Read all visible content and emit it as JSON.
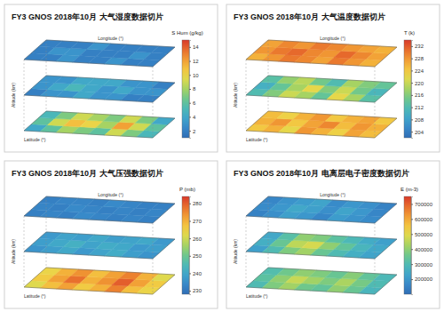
{
  "chart_data": [
    {
      "type": "heatmap",
      "title": "FY3 GNOS 2018年10月 大气湿度数据切片",
      "colorbar_label": "S Hum (g/kg)",
      "colorbar_range": [
        1,
        15
      ],
      "colorbar_ticks": [
        2,
        4,
        6,
        8,
        10,
        12,
        14
      ],
      "xlabel": "Longitude (°)",
      "ylabel": "Latitude (°)",
      "zlabel": "Altitude (km)",
      "cells": [
        [
          [
            2,
            2,
            3,
            2,
            2,
            3,
            2,
            2
          ],
          [
            2,
            3,
            3,
            2,
            2,
            2,
            3,
            2
          ],
          [
            2,
            2,
            2,
            3,
            2,
            2,
            2,
            2
          ]
        ],
        [
          [
            2,
            3,
            3,
            4,
            3,
            3,
            2,
            2
          ],
          [
            3,
            4,
            5,
            4,
            3,
            4,
            3,
            3
          ],
          [
            3,
            3,
            4,
            4,
            4,
            3,
            3,
            2
          ]
        ],
        [
          [
            4,
            6,
            8,
            7,
            6,
            9,
            7,
            5
          ],
          [
            6,
            9,
            11,
            10,
            8,
            12,
            9,
            6
          ],
          [
            5,
            7,
            9,
            8,
            7,
            9,
            7,
            4
          ]
        ]
      ]
    },
    {
      "type": "heatmap",
      "title": "FY3 GNOS 2018年10月 大气温度数据切片",
      "colorbar_label": "T (k)",
      "colorbar_range": [
        202,
        234
      ],
      "colorbar_ticks": [
        204,
        208,
        212,
        216,
        220,
        224,
        228,
        232
      ],
      "xlabel": "Longitude (°)",
      "ylabel": "Latitude (°)",
      "zlabel": "Altitude (km)",
      "cells": [
        [
          [
            226,
            228,
            230,
            229,
            227,
            230,
            228,
            226
          ],
          [
            228,
            230,
            231,
            229,
            228,
            231,
            229,
            227
          ],
          [
            227,
            229,
            228,
            230,
            229,
            228,
            227,
            226
          ]
        ],
        [
          [
            212,
            216,
            220,
            218,
            214,
            222,
            218,
            213
          ],
          [
            210,
            214,
            218,
            222,
            216,
            220,
            215,
            211
          ],
          [
            213,
            217,
            219,
            215,
            212,
            218,
            216,
            214
          ]
        ],
        [
          [
            224,
            226,
            222,
            228,
            226,
            223,
            227,
            225
          ],
          [
            226,
            228,
            224,
            227,
            229,
            225,
            228,
            226
          ],
          [
            225,
            223,
            226,
            228,
            224,
            226,
            227,
            224
          ]
        ]
      ]
    },
    {
      "type": "heatmap",
      "title": "FY3 GNOS 2018年10月 大气压强数据切片",
      "colorbar_label": "P (mb)",
      "colorbar_range": [
        228,
        284
      ],
      "colorbar_ticks": [
        230,
        240,
        250,
        260,
        270,
        280
      ],
      "xlabel": "Longitude (°)",
      "ylabel": "Latitude (°)",
      "zlabel": "Altitude (km)",
      "cells": [
        [
          [
            232,
            233,
            232,
            234,
            233,
            232,
            233,
            232
          ],
          [
            233,
            232,
            234,
            233,
            232,
            233,
            232,
            233
          ],
          [
            232,
            233,
            233,
            232,
            234,
            233,
            232,
            232
          ]
        ],
        [
          [
            236,
            238,
            240,
            237,
            239,
            241,
            238,
            236
          ],
          [
            238,
            240,
            242,
            239,
            241,
            240,
            237,
            238
          ],
          [
            237,
            239,
            238,
            240,
            238,
            239,
            240,
            237
          ]
        ],
        [
          [
            262,
            268,
            272,
            266,
            270,
            276,
            268,
            264
          ],
          [
            266,
            272,
            278,
            270,
            274,
            280,
            272,
            266
          ],
          [
            264,
            270,
            274,
            268,
            272,
            276,
            270,
            262
          ]
        ]
      ]
    },
    {
      "type": "heatmap",
      "title": "FY3 GNOS 2018年10月 电离层电子密度数据切片",
      "colorbar_label": "E (m-3)",
      "colorbar_range": [
        100000,
        750000
      ],
      "colorbar_ticks": [
        200000,
        300000,
        400000,
        500000,
        600000,
        700000
      ],
      "xlabel": "Longitude (°)",
      "ylabel": "Latitude (°)",
      "zlabel": "Altitude (km)",
      "cells": [
        [
          [
            150000,
            180000,
            220000,
            200000,
            160000,
            210000,
            190000,
            170000
          ],
          [
            170000,
            200000,
            240000,
            220000,
            180000,
            230000,
            200000,
            160000
          ],
          [
            160000,
            190000,
            210000,
            230000,
            170000,
            200000,
            180000,
            150000
          ]
        ],
        [
          [
            220000,
            300000,
            380000,
            420000,
            350000,
            300000,
            260000,
            230000
          ],
          [
            260000,
            350000,
            450000,
            480000,
            400000,
            340000,
            280000,
            240000
          ],
          [
            240000,
            320000,
            400000,
            380000,
            330000,
            290000,
            250000,
            220000
          ]
        ],
        [
          [
            300000,
            380000,
            420000,
            360000,
            340000,
            400000,
            350000,
            280000
          ],
          [
            330000,
            400000,
            460000,
            420000,
            380000,
            430000,
            370000,
            300000
          ],
          [
            310000,
            360000,
            400000,
            380000,
            350000,
            390000,
            340000,
            290000
          ]
        ]
      ]
    }
  ]
}
